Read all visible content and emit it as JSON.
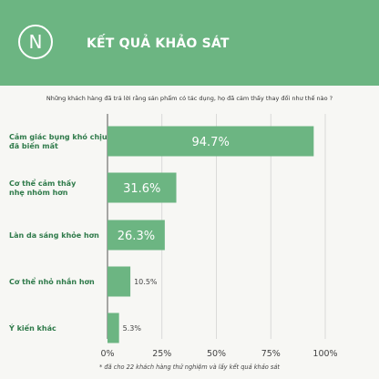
{
  "header": {
    "logo_letter": "N",
    "title": "KẾT QUẢ KHẢO SÁT",
    "background_color": "#6cb582"
  },
  "question": "Những khách hàng đã trả lời rằng sản phẩm có tác dụng, họ đã cảm thấy thay đổi như thế nào ?",
  "footnote": "*   đã cho 22 khách hàng thử nghiệm và lấy kết quả khảo sát",
  "chart_data": {
    "type": "bar",
    "orientation": "horizontal",
    "categories": [
      [
        "Cảm giác bụng khó chịu",
        "đã biến mất"
      ],
      [
        "Cơ thể cảm thấy",
        "nhẹ nhõm hơn"
      ],
      [
        "Làn da sáng khỏe hơn"
      ],
      [
        "Cơ thể nhỏ nhắn hơn"
      ],
      [
        "Ý kiến khác"
      ]
    ],
    "values": [
      94.7,
      31.6,
      26.3,
      10.5,
      5.3
    ],
    "value_labels": [
      "94.7%",
      "31.6%",
      "26.3%",
      "10.5%",
      "5.3%"
    ],
    "x_ticks": [
      "0%",
      "25%",
      "50%",
      "75%",
      "100%"
    ],
    "xlim": [
      0,
      100
    ],
    "grid": true,
    "bar_color": "#6cb582",
    "label_color": "#2f7a4a"
  }
}
